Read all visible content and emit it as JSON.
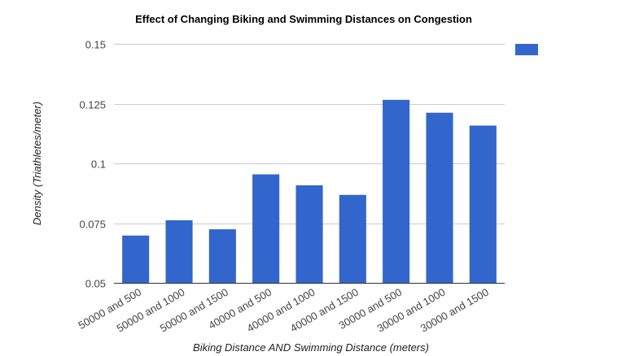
{
  "chart_data": {
    "type": "bar",
    "title": "Effect of Changing Biking and Swimming Distances on Congestion",
    "xlabel": "Biking Distance AND Swimming Distance (meters)",
    "ylabel": "Density (Triathletes/meter)",
    "categories": [
      "50000 and 500",
      "50000 and 1000",
      "50000 and 1500",
      "40000 and 500",
      "40000 and 1000",
      "40000 and 1500",
      "30000 and 500",
      "30000 and 1000",
      "30000 and 1500"
    ],
    "values": [
      0.0698,
      0.0762,
      0.0724,
      0.0954,
      0.0908,
      0.0868,
      0.1266,
      0.1212,
      0.1158
    ],
    "ylim": [
      0.05,
      0.15
    ],
    "yticks": [
      "0.05",
      "0.075",
      "0.1",
      "0.125",
      "0.15"
    ],
    "ytick_values": [
      0.05,
      0.075,
      0.1,
      0.125,
      0.15
    ],
    "grid": true,
    "legend": "top-right",
    "series_color": "#3366cc"
  }
}
